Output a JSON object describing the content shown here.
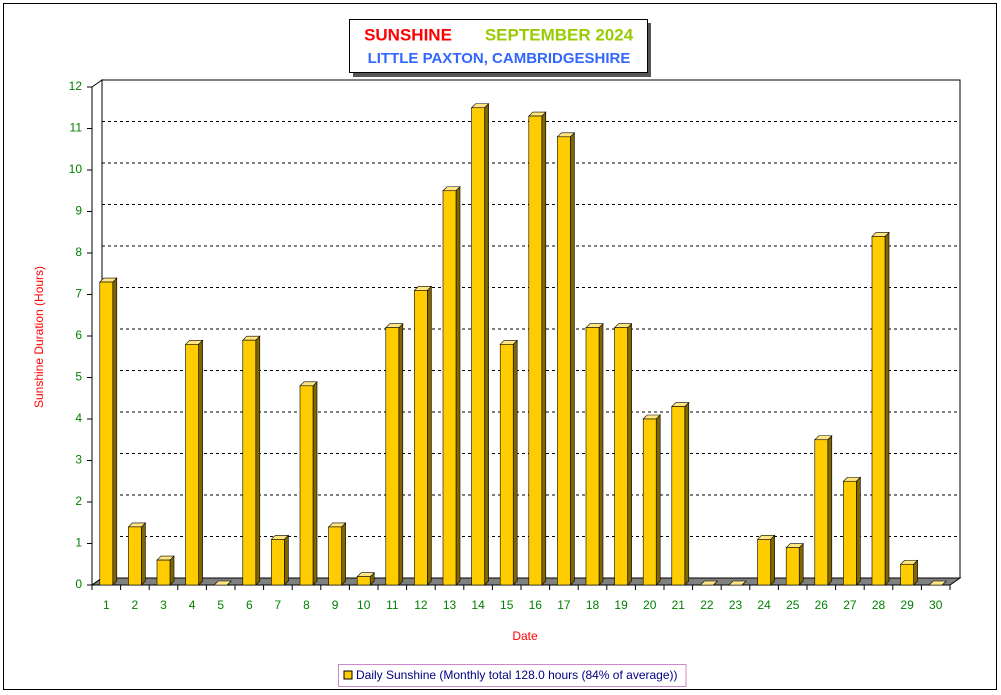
{
  "chart_data": {
    "type": "bar3d",
    "title_parts": [
      "SUNSHINE",
      "SEPTEMBER 2024"
    ],
    "subtitle": "LITTLE PAXTON, CAMBRIDGESHIRE",
    "x_label": "Date",
    "y_label": "Sunshine Duration (Hours)",
    "categories": [
      "1",
      "2",
      "3",
      "4",
      "5",
      "6",
      "7",
      "8",
      "9",
      "10",
      "11",
      "12",
      "13",
      "14",
      "15",
      "16",
      "17",
      "18",
      "19",
      "20",
      "21",
      "22",
      "23",
      "24",
      "25",
      "26",
      "27",
      "28",
      "29",
      "30"
    ],
    "series": [
      {
        "name": "Daily Sunshine (Monthly total 128.0 hours (84% of average))",
        "color": "#ffcc00",
        "values": [
          7.3,
          1.4,
          0.6,
          5.8,
          0,
          5.9,
          1.1,
          4.8,
          1.4,
          0.2,
          6.2,
          7.1,
          9.5,
          11.5,
          5.8,
          11.3,
          10.8,
          6.2,
          6.2,
          4.0,
          4.3,
          0,
          0,
          1.1,
          0.9,
          3.5,
          2.5,
          8.4,
          0.5,
          0
        ]
      }
    ],
    "ylim": [
      0,
      12
    ],
    "yticks": [
      0,
      1,
      2,
      3,
      4,
      5,
      6,
      7,
      8,
      9,
      10,
      11,
      12
    ],
    "grid": true,
    "legend": "bottom"
  }
}
